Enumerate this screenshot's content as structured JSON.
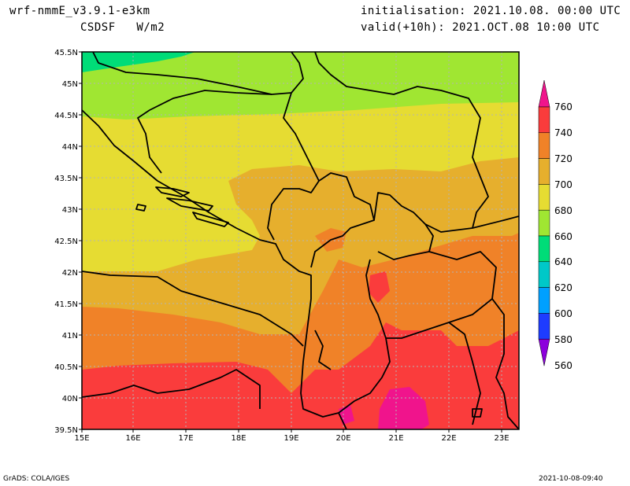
{
  "header": {
    "model": "wrf-nmmE_v3.9.1-e3km",
    "field": "CSDSF   W/m2",
    "init": "initialisation: 2021.10.08. 00:00 UTC",
    "valid": "valid(+10h): 2021.OCT.08 10:00 UTC"
  },
  "footer": {
    "credit": "GrADS: COLA/IGES",
    "stamp": "2021-10-08-09:40"
  },
  "map": {
    "lat_labels": [
      "45.5N",
      "45N",
      "44.5N",
      "44N",
      "43.5N",
      "43N",
      "42.5N",
      "42N",
      "41.5N",
      "41N",
      "40.5N",
      "40N",
      "39.5N"
    ],
    "lon_labels": [
      "15E",
      "16E",
      "17E",
      "18E",
      "19E",
      "20E",
      "21E",
      "22E",
      "23E"
    ],
    "colorbar": {
      "levels": [
        "760",
        "740",
        "720",
        "700",
        "680",
        "660",
        "640",
        "620",
        "600",
        "580",
        "560"
      ],
      "colors": [
        "#f0148c",
        "#fa3c3c",
        "#f08228",
        "#e6af2d",
        "#e6dc32",
        "#a0e632",
        "#00dc78",
        "#00c8c8",
        "#00a0ff",
        "#1e3cff",
        "#8c00dc"
      ]
    }
  }
}
